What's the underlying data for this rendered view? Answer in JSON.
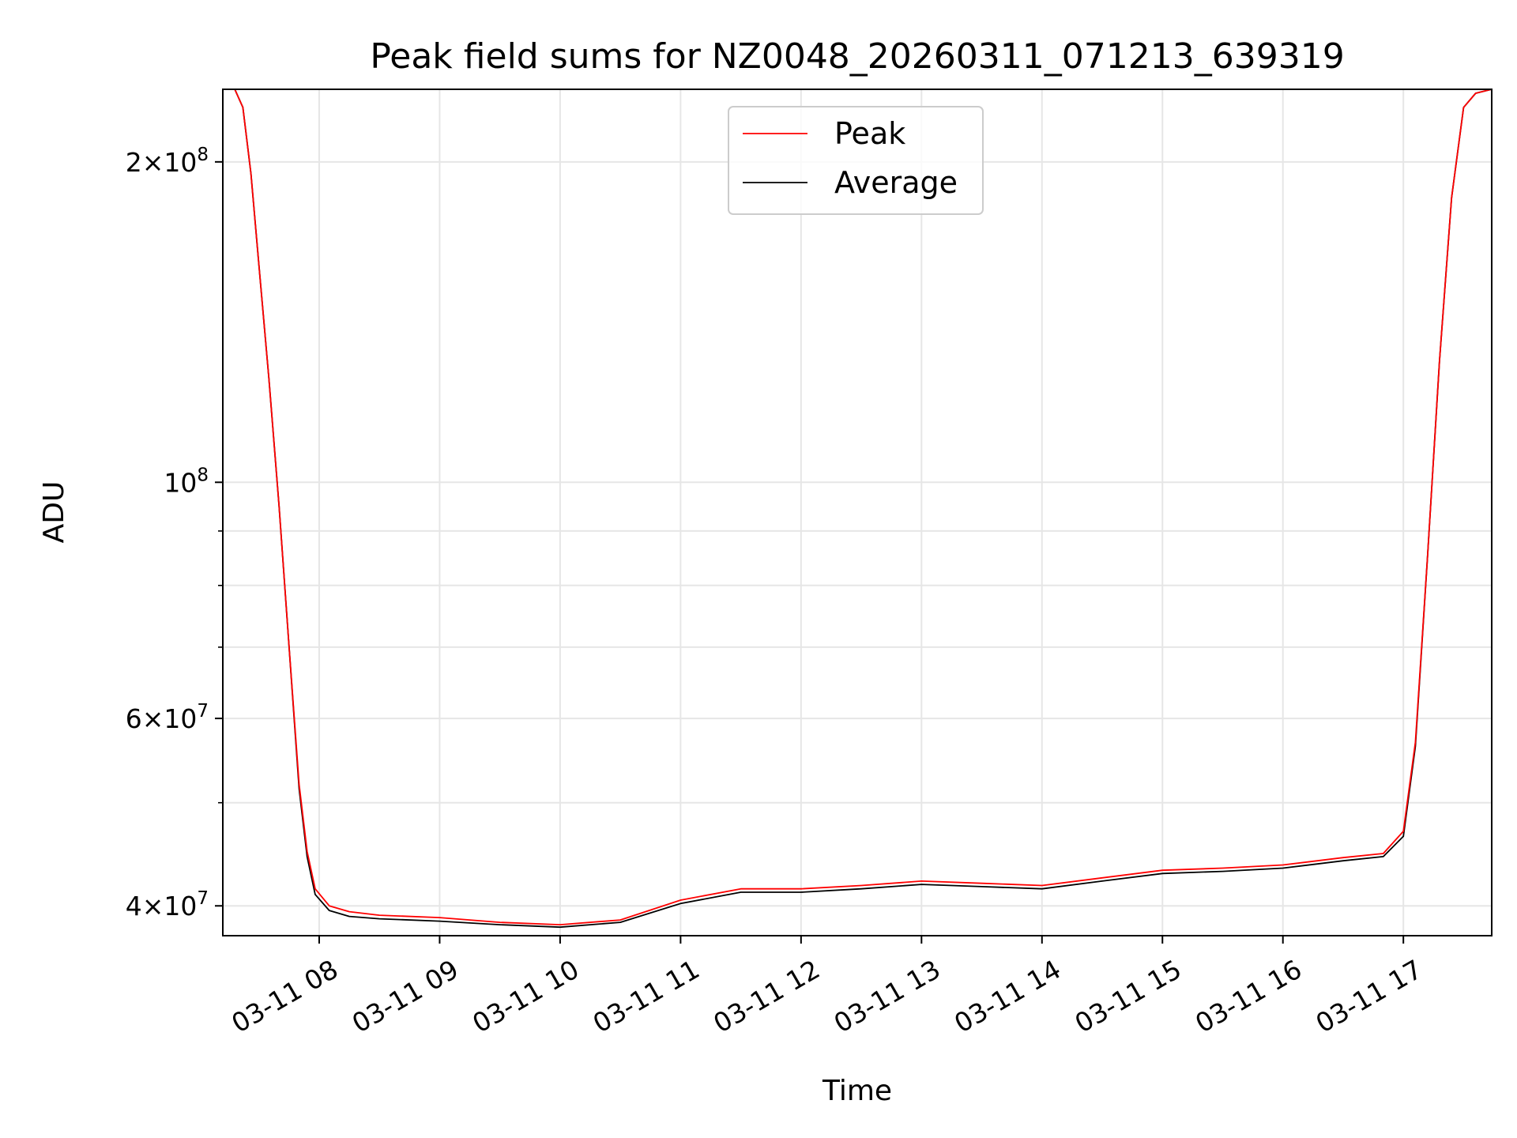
{
  "chart_data": {
    "type": "line",
    "title": "Peak field sums for NZ0048_20260311_071213_639319",
    "xlabel": "Time",
    "ylabel": "ADU",
    "y_scale": "log",
    "ylim": [
      37500000,
      234000000
    ],
    "xlim": [
      "2026-03-11 07:12",
      "2026-03-11 17:44"
    ],
    "grid": true,
    "legend_position": "upper center",
    "x_ticks": [
      {
        "value": "2026-03-11 08:00",
        "label": "03-11 08"
      },
      {
        "value": "2026-03-11 09:00",
        "label": "03-11 09"
      },
      {
        "value": "2026-03-11 10:00",
        "label": "03-11 10"
      },
      {
        "value": "2026-03-11 11:00",
        "label": "03-11 11"
      },
      {
        "value": "2026-03-11 12:00",
        "label": "03-11 12"
      },
      {
        "value": "2026-03-11 13:00",
        "label": "03-11 13"
      },
      {
        "value": "2026-03-11 14:00",
        "label": "03-11 14"
      },
      {
        "value": "2026-03-11 15:00",
        "label": "03-11 15"
      },
      {
        "value": "2026-03-11 16:00",
        "label": "03-11 16"
      },
      {
        "value": "2026-03-11 17:00",
        "label": "03-11 17"
      }
    ],
    "y_ticks": [
      {
        "value": 40000000,
        "mantissa": "4",
        "exponent": "7"
      },
      {
        "value": 60000000,
        "mantissa": "6",
        "exponent": "7"
      },
      {
        "value": 100000000,
        "mantissa": "",
        "exponent": "8"
      },
      {
        "value": 200000000,
        "mantissa": "2",
        "exponent": "8"
      }
    ],
    "y_minor_ticks": [
      50000000,
      70000000,
      80000000,
      90000000
    ],
    "series": [
      {
        "name": "Peak",
        "color": "#ff0000",
        "x": [
          "2026-03-11 07:12",
          "2026-03-11 07:18",
          "2026-03-11 07:22",
          "2026-03-11 07:26",
          "2026-03-11 07:30",
          "2026-03-11 07:35",
          "2026-03-11 07:40",
          "2026-03-11 07:45",
          "2026-03-11 07:50",
          "2026-03-11 07:54",
          "2026-03-11 07:58",
          "2026-03-11 08:05",
          "2026-03-11 08:15",
          "2026-03-11 08:30",
          "2026-03-11 09:00",
          "2026-03-11 09:30",
          "2026-03-11 10:00",
          "2026-03-11 10:30",
          "2026-03-11 11:00",
          "2026-03-11 11:30",
          "2026-03-11 12:00",
          "2026-03-11 12:30",
          "2026-03-11 13:00",
          "2026-03-11 13:30",
          "2026-03-11 14:00",
          "2026-03-11 14:30",
          "2026-03-11 15:00",
          "2026-03-11 15:30",
          "2026-03-11 16:00",
          "2026-03-11 16:30",
          "2026-03-11 16:50",
          "2026-03-11 17:00",
          "2026-03-11 17:06",
          "2026-03-11 17:12",
          "2026-03-11 17:18",
          "2026-03-11 17:24",
          "2026-03-11 17:30",
          "2026-03-11 17:36",
          "2026-03-11 17:44"
        ],
        "y": [
          234000000,
          234000000,
          225000000,
          195000000,
          160000000,
          125000000,
          95000000,
          70000000,
          52000000,
          45000000,
          41500000,
          40000000,
          39500000,
          39200000,
          39000000,
          38600000,
          38400000,
          38800000,
          40500000,
          41500000,
          41500000,
          41800000,
          42200000,
          42000000,
          41800000,
          42500000,
          43200000,
          43400000,
          43700000,
          44400000,
          44800000,
          47000000,
          57000000,
          85000000,
          130000000,
          185000000,
          225000000,
          232000000,
          234000000
        ]
      },
      {
        "name": "Average",
        "color": "#000000",
        "x": [
          "2026-03-11 07:12",
          "2026-03-11 07:18",
          "2026-03-11 07:22",
          "2026-03-11 07:26",
          "2026-03-11 07:30",
          "2026-03-11 07:35",
          "2026-03-11 07:40",
          "2026-03-11 07:45",
          "2026-03-11 07:50",
          "2026-03-11 07:54",
          "2026-03-11 07:58",
          "2026-03-11 08:05",
          "2026-03-11 08:15",
          "2026-03-11 08:30",
          "2026-03-11 09:00",
          "2026-03-11 09:30",
          "2026-03-11 10:00",
          "2026-03-11 10:30",
          "2026-03-11 11:00",
          "2026-03-11 11:30",
          "2026-03-11 12:00",
          "2026-03-11 12:30",
          "2026-03-11 13:00",
          "2026-03-11 13:30",
          "2026-03-11 14:00",
          "2026-03-11 14:30",
          "2026-03-11 15:00",
          "2026-03-11 15:30",
          "2026-03-11 16:00",
          "2026-03-11 16:30",
          "2026-03-11 16:50",
          "2026-03-11 17:00",
          "2026-03-11 17:06",
          "2026-03-11 17:12",
          "2026-03-11 17:18",
          "2026-03-11 17:24",
          "2026-03-11 17:30",
          "2026-03-11 17:36",
          "2026-03-11 17:44"
        ],
        "y": [
          234000000,
          234000000,
          225000000,
          195000000,
          160000000,
          125000000,
          95000000,
          70000000,
          51500000,
          44500000,
          41000000,
          39600000,
          39100000,
          38900000,
          38700000,
          38400000,
          38200000,
          38600000,
          40200000,
          41200000,
          41200000,
          41500000,
          41900000,
          41700000,
          41500000,
          42200000,
          42900000,
          43100000,
          43400000,
          44100000,
          44500000,
          46500000,
          56500000,
          85000000,
          130000000,
          185000000,
          225000000,
          232000000,
          234000000
        ]
      }
    ]
  }
}
